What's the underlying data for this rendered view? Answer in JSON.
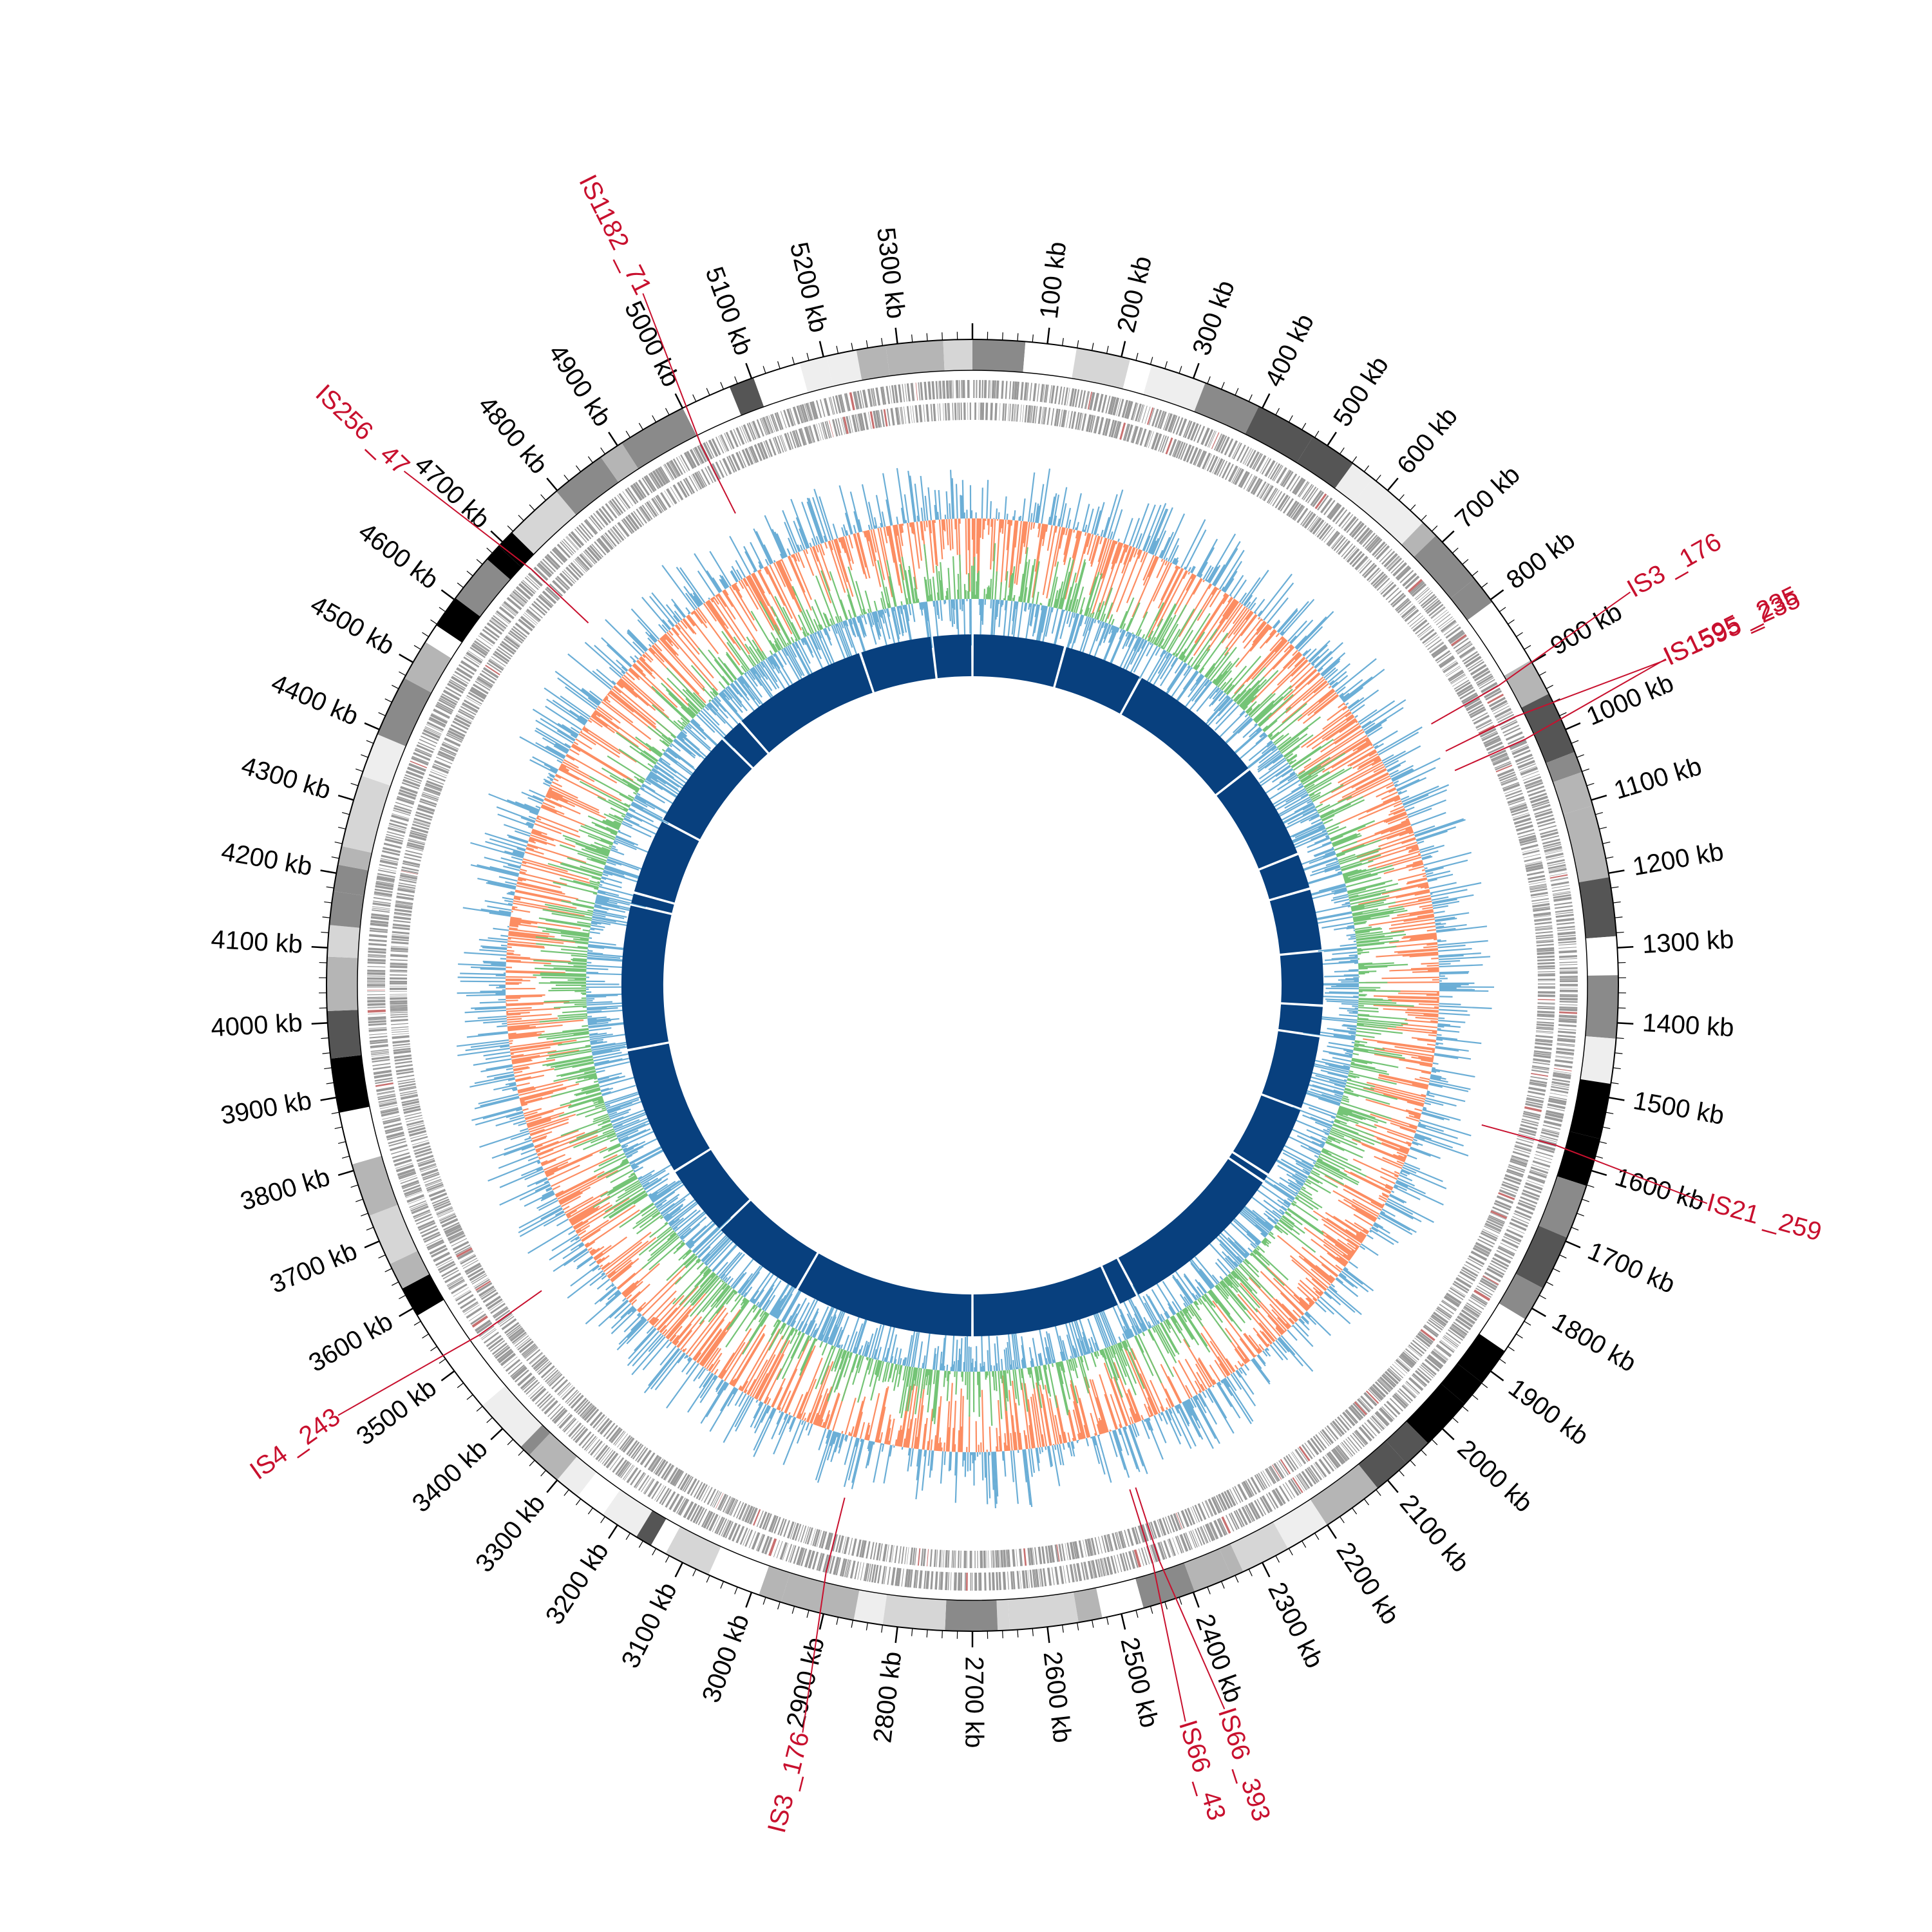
{
  "genome": {
    "length_kb": 5400,
    "tick_labels_kb": [
      100,
      200,
      300,
      400,
      500,
      600,
      700,
      800,
      900,
      1000,
      1100,
      1200,
      1300,
      1400,
      1500,
      1600,
      1700,
      1800,
      1900,
      2000,
      2100,
      2200,
      2300,
      2400,
      2500,
      2600,
      2700,
      2800,
      2900,
      3000,
      3100,
      3200,
      3300,
      3400,
      3500,
      3600,
      3700,
      3800,
      3900,
      4000,
      4100,
      4200,
      4300,
      4400,
      4500,
      4600,
      4700,
      4800,
      4900,
      5000,
      5100,
      5200,
      5300
    ],
    "tick_unit": "kb"
  },
  "insertion_sequences": [
    {
      "label": "IS3 _176",
      "position_kb": 905
    },
    {
      "label": "IS1595 _235",
      "position_kb": 955
    },
    {
      "label": "IS1595 _235",
      "position_kb": 990
    },
    {
      "label": "IS21 _259",
      "position_kb": 1580
    },
    {
      "label": "IS66 _393",
      "position_kb": 2430
    },
    {
      "label": "IS66 _43",
      "position_kb": 2440
    },
    {
      "label": "IS3 _176",
      "position_kb": 2910
    },
    {
      "label": "IS4 _243",
      "position_kb": 3520
    },
    {
      "label": "IS256 _47",
      "position_kb": 4700
    },
    {
      "label": "IS1182 _71",
      "position_kb": 5000
    }
  ],
  "colors": {
    "is_label": "#c8102e",
    "gc_content_positive": "#fc8d62",
    "gc_content_negative": "#6baed6",
    "gc_skew_positive": "#74c476",
    "gc_skew_negative": "#6baed6",
    "contig_ring": "#08407e",
    "gene_ring": "#999999"
  },
  "tracks": [
    "ideogram-bands",
    "forward-strand-genes",
    "reverse-strand-genes",
    "gc-content",
    "gc-skew",
    "contig-blocks"
  ]
}
